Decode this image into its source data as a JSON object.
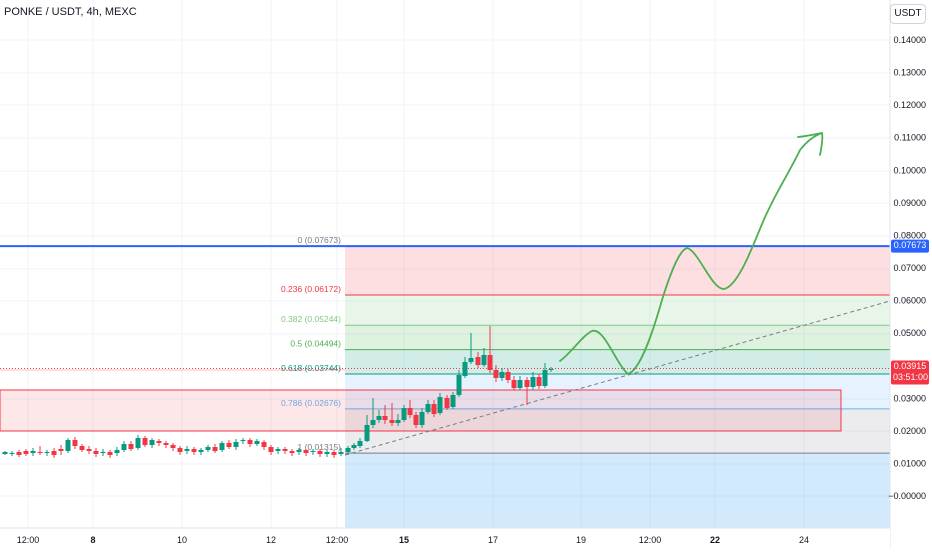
{
  "header": {
    "symbol_title": "PONKE / USDT, 4h, MEXC",
    "currency_button": "USDT"
  },
  "price_axis": {
    "tick_labels": [
      "0.14000",
      "0.13000",
      "0.12000",
      "0.11000",
      "0.10000",
      "0.09000",
      "0.08000",
      "0.07000",
      "0.06000",
      "0.05000",
      "0.03000",
      "0.02000",
      "0.01000",
      "−0.00000"
    ],
    "tick_values": [
      0.14,
      0.13,
      0.12,
      0.11,
      0.1,
      0.09,
      0.08,
      0.07,
      0.06,
      0.05,
      0.03,
      0.02,
      0.01,
      0.0
    ]
  },
  "time_axis": {
    "labels": [
      "12:00",
      "8",
      "10",
      "12",
      "12:00",
      "15",
      "17",
      "19",
      "12:00",
      "22",
      "24"
    ],
    "bold": [
      false,
      true,
      false,
      false,
      false,
      true,
      false,
      false,
      false,
      true,
      false
    ]
  },
  "current_price": {
    "value": "0.03915",
    "countdown": "03:51:00",
    "numeric": 0.03915,
    "color": "#f23645"
  },
  "level_line": {
    "label": "0.07673",
    "numeric": 0.07673,
    "color": "#2962ff"
  },
  "fib_levels": [
    {
      "label": "0 (0.07673)",
      "price": 0.07673,
      "color": "#787b86"
    },
    {
      "label": "0.236 (0.06172)",
      "price": 0.06172,
      "color": "#f23645"
    },
    {
      "label": "0.382 (0.05244)",
      "price": 0.05244,
      "color": "#81c784"
    },
    {
      "label": "0.5 (0.04494)",
      "price": 0.04494,
      "color": "#4caf50"
    },
    {
      "label": "0.618 (0.03744)",
      "price": 0.03744,
      "color": "#089981"
    },
    {
      "label": "0.786 (0.02676)",
      "price": 0.02676,
      "color": "#64b5f6"
    },
    {
      "label": "1 (0.01315)",
      "price": 0.01315,
      "color": "#787b86"
    }
  ],
  "colors": {
    "up": "#089981",
    "down": "#f23645",
    "projection": "#4caf50",
    "trendline": "#787b86",
    "zone_border": "#f23645"
  }
}
